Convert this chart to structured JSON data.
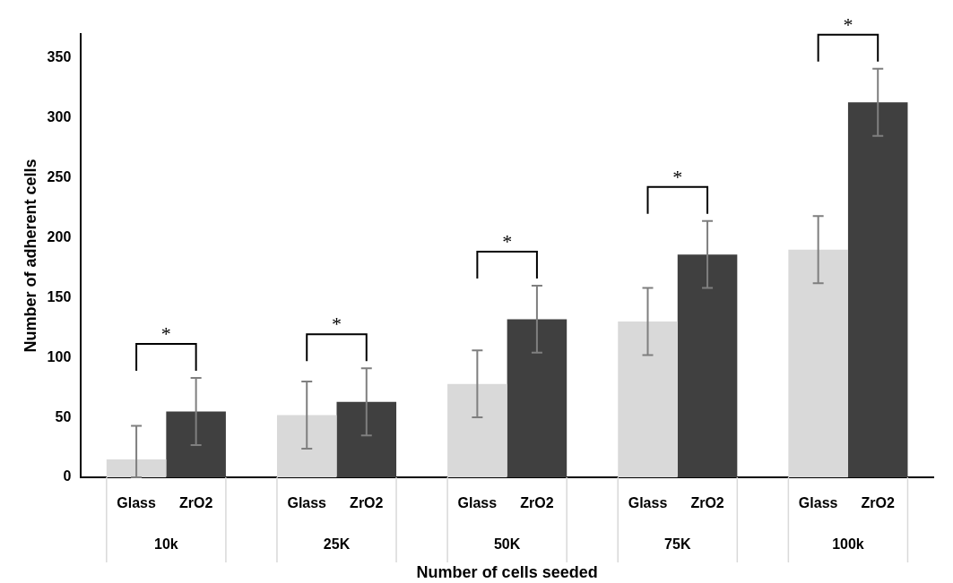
{
  "chart_data": {
    "type": "bar",
    "xlabel": "Number of cells seeded",
    "ylabel": "Number of adherent cells",
    "categories": [
      "10k",
      "25K",
      "50K",
      "75K",
      "100k"
    ],
    "series": [
      {
        "name": "Glass",
        "color": "#d9d9d9",
        "values": [
          15,
          52,
          78,
          130,
          190
        ],
        "errors": [
          [
            0,
            43
          ],
          28,
          28,
          28,
          28
        ]
      },
      {
        "name": "ZrO2",
        "color": "#404040",
        "values": [
          55,
          63,
          132,
          186,
          313
        ],
        "errors": [
          28,
          28,
          28,
          28,
          28
        ]
      }
    ],
    "ylim": [
      0,
      370
    ],
    "yticks": [
      0,
      50,
      100,
      150,
      200,
      250,
      300,
      350
    ],
    "grid": false,
    "legend": false,
    "annotations": [
      "*",
      "*",
      "*",
      "*",
      "*"
    ]
  }
}
